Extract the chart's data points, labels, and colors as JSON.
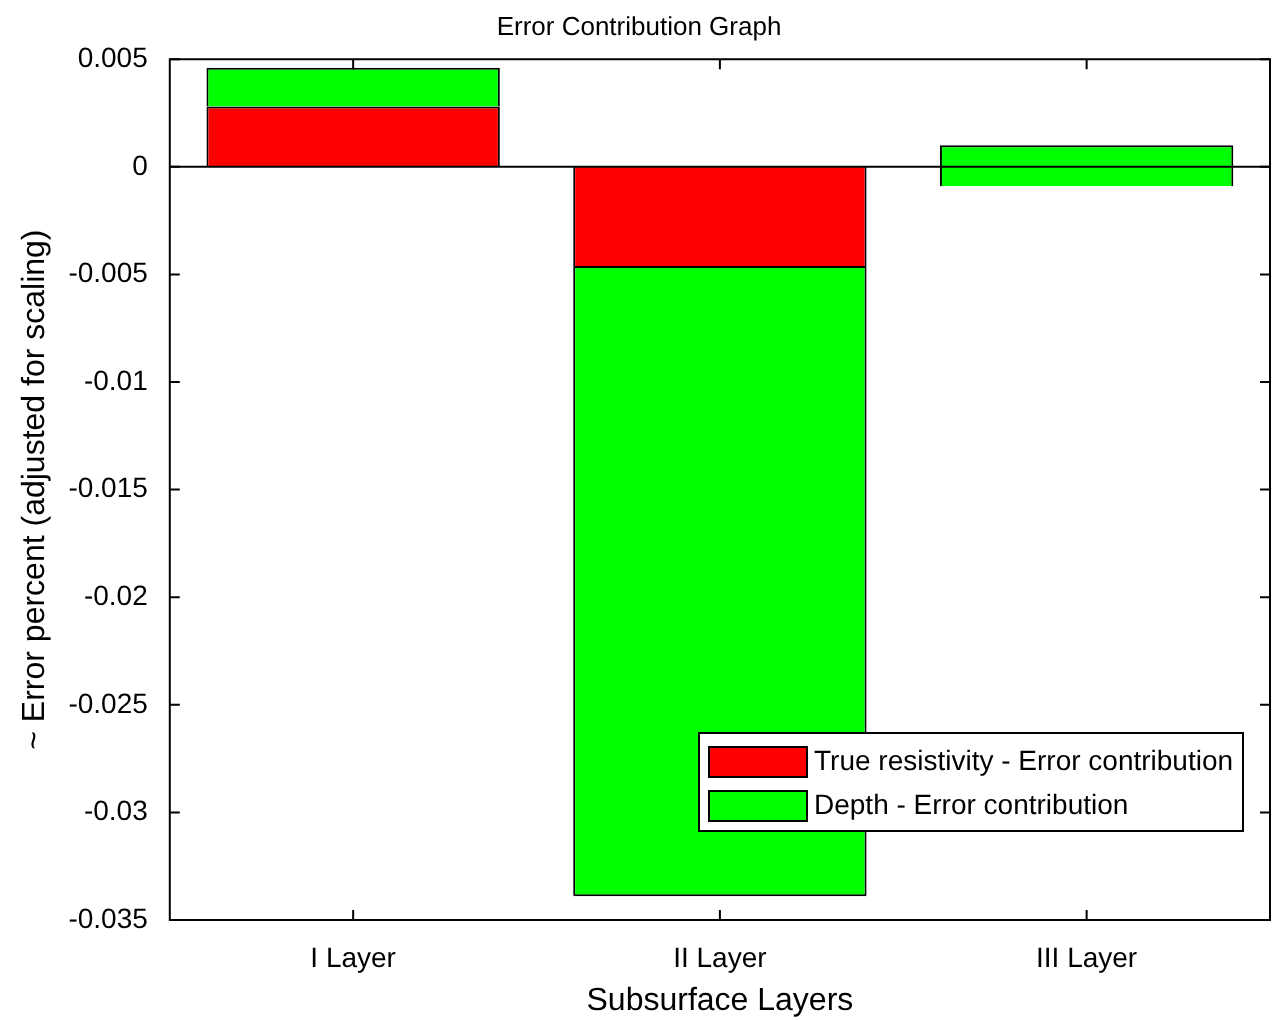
{
  "chart_data": {
    "type": "bar",
    "title": "Error Contribution Graph",
    "xlabel": "Subsurface Layers",
    "ylabel": "~ Error percent (adjusted for scaling)",
    "categories": [
      "I Layer",
      "II Layer",
      "III Layer"
    ],
    "series": [
      {
        "name": "True resistivity - Error contribution",
        "color": "#ff0000",
        "values": [
          0.0028,
          -0.0047,
          null
        ]
      },
      {
        "name": "Depth - Error contribution",
        "color": "#00ff00",
        "values": [
          0.0018,
          -0.0292,
          0.0019
        ],
        "base": [
          null,
          null,
          -0.0009
        ]
      }
    ],
    "stacked": true,
    "ylim": [
      -0.035,
      0.005
    ],
    "yticks": [
      -0.035,
      -0.03,
      -0.025,
      -0.02,
      -0.015,
      -0.01,
      -0.005,
      0,
      0.005
    ],
    "legend": "bottom right"
  }
}
